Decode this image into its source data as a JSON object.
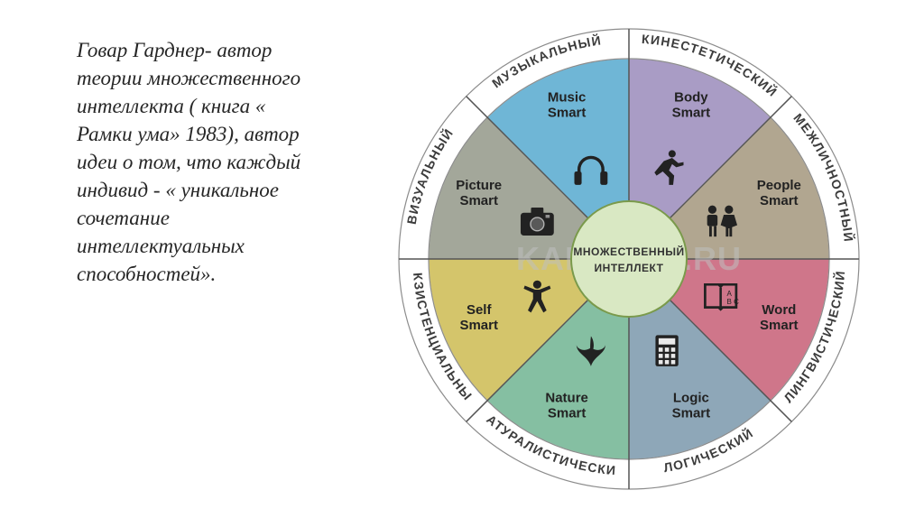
{
  "paragraph": "Говар Гарднер- автор теории множественного интеллекта ( книга « Рамки ума» 1983), автор идеи о том, что каждый индивид -       « уникальное сочетание интеллектуальных способностей».",
  "center": {
    "line1": "МНОЖЕСТВЕННЫЙ",
    "line2": "ИНТЕЛЛЕКТ",
    "fill": "#d9e8c3",
    "stroke": "#7a9a4b"
  },
  "watermark": "KALKPRO.RU",
  "wheel": {
    "outer_radius": 255,
    "ring_inner": 222,
    "seg_outer": 222,
    "seg_inner": 62,
    "ring_fill": "#ffffff",
    "ring_stroke": "#8c8c8c",
    "divider_stroke": "#555555",
    "label_radius": 150
  },
  "segments": [
    {
      "ring": "МУЗЫКАЛЬНЫЙ",
      "label1": "Music",
      "label2": "Smart",
      "color": "#6fb6d6",
      "icon": "headphones"
    },
    {
      "ring": "КИНЕСТЕТИЧЕСКИЙ",
      "label1": "Body",
      "label2": "Smart",
      "color": "#a99cc5",
      "icon": "runner"
    },
    {
      "ring": "МЕЖЛИЧНОСТНЫЙ",
      "label1": "People",
      "label2": "Smart",
      "color": "#b1a690",
      "icon": "people"
    },
    {
      "ring": "ЛИНГВИСТИЧЕСКИЙ",
      "label1": "Word",
      "label2": "Smart",
      "color": "#cf768a",
      "icon": "book"
    },
    {
      "ring": "ЛОГИЧЕСКИЙ",
      "label1": "Logic",
      "label2": "Smart",
      "color": "#8ea7b8",
      "icon": "calculator"
    },
    {
      "ring": "НАТУРАЛИСТИЧЕСКИЙ",
      "label1": "Nature",
      "label2": "Smart",
      "color": "#85bfa2",
      "icon": "leaf"
    },
    {
      "ring": "ЭКЗИСТЕНЦИАЛЬНЫЙ",
      "label1": "Self",
      "label2": "Smart",
      "color": "#d4c56b",
      "icon": "person-star"
    },
    {
      "ring": "ВИЗУАЛЬНЫЙ",
      "label1": "Picture",
      "label2": "Smart",
      "color": "#a3a79a",
      "icon": "camera"
    }
  ]
}
